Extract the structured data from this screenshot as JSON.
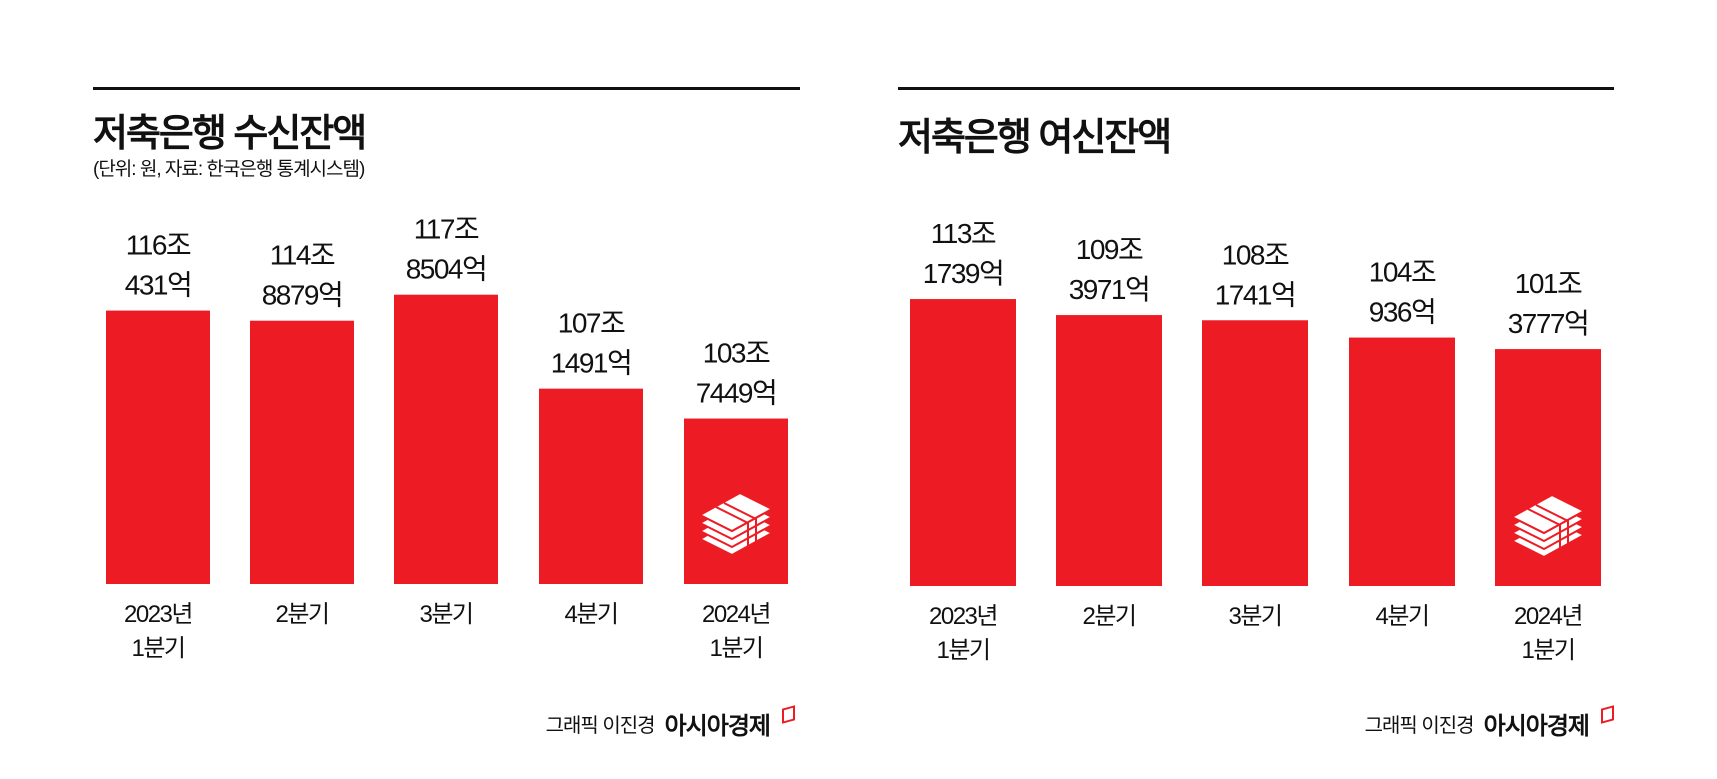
{
  "chart_data": [
    {
      "type": "bar",
      "title": "저축은행 수신잔액",
      "subtitle": "(단위: 원, 자료: 한국은행 통계시스템)",
      "categories": [
        [
          "2023년",
          "1분기"
        ],
        [
          "2분기"
        ],
        [
          "3분기"
        ],
        [
          "4분기"
        ],
        [
          "2024년",
          "1분기"
        ]
      ],
      "values": [
        116.0431,
        114.8879,
        117.8504,
        107.1491,
        103.7449
      ],
      "unit": "조원",
      "data_labels": [
        [
          "116조",
          "431억"
        ],
        [
          "114조",
          "8879억"
        ],
        [
          "117조",
          "8504억"
        ],
        [
          "107조",
          "1491억"
        ],
        [
          "103조",
          "7449억"
        ]
      ],
      "bar_color": "#ed1c24",
      "grid": false,
      "icon_on_last_bar": "money-stack-icon"
    },
    {
      "type": "bar",
      "title": "저축은행 여신잔액",
      "categories": [
        [
          "2023년",
          "1분기"
        ],
        [
          "2분기"
        ],
        [
          "3분기"
        ],
        [
          "4분기"
        ],
        [
          "2024년",
          "1분기"
        ]
      ],
      "values": [
        113.1739,
        109.3971,
        108.1741,
        104.0936,
        101.3777
      ],
      "unit": "조원",
      "data_labels": [
        [
          "113조",
          "1739억"
        ],
        [
          "109조",
          "3971억"
        ],
        [
          "108조",
          "1741억"
        ],
        [
          "104조",
          "936억"
        ],
        [
          "101조",
          "3777억"
        ]
      ],
      "bar_color": "#ed1c24",
      "grid": false,
      "icon_on_last_bar": "money-stack-icon"
    }
  ],
  "footer": {
    "credit": "그래픽 이진경",
    "brand": "아시아경제"
  }
}
